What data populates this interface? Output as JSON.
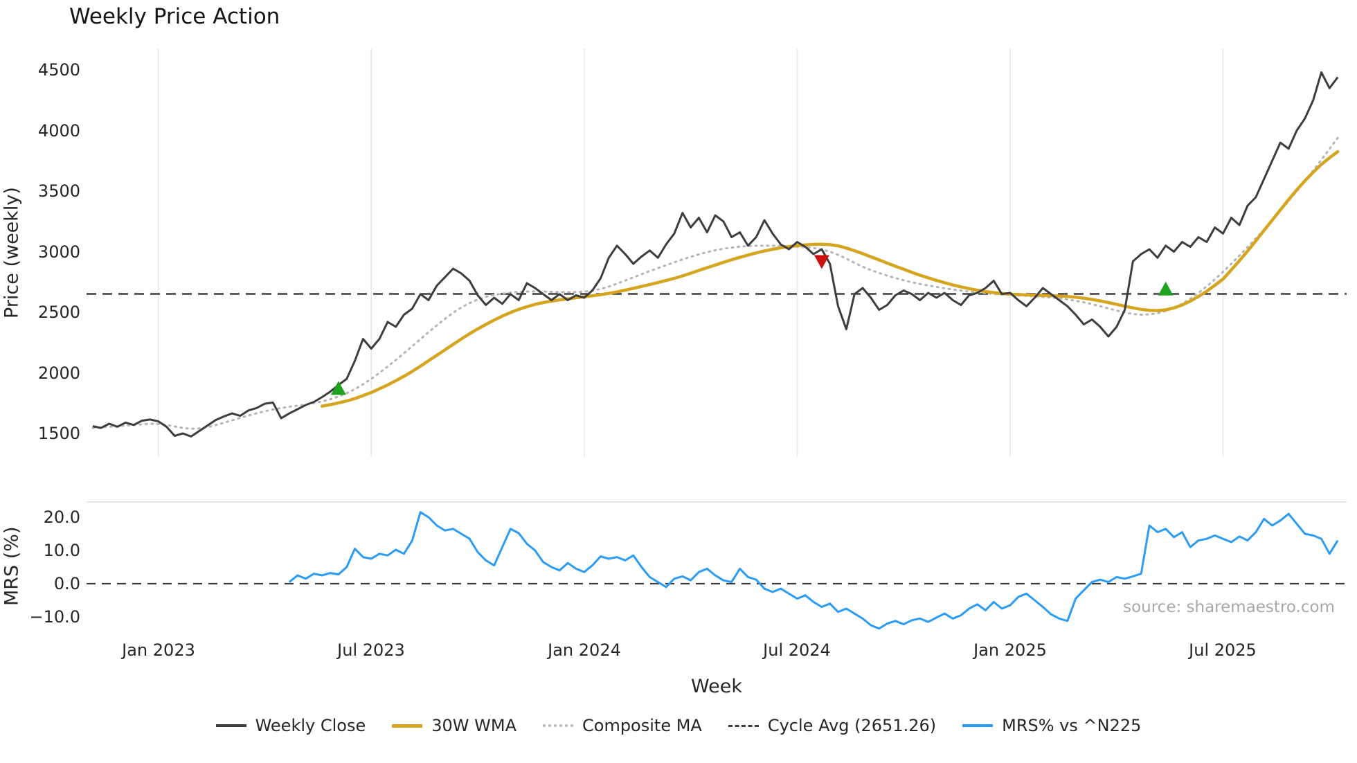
{
  "colors": {
    "weekly_close": "#3d3d3d",
    "wma30": "#d6a520",
    "composite": "#b5b5b5",
    "cycle_avg": "#3d3d3d",
    "mrs": "#2b9bf4",
    "buy_marker": "#1fa31f",
    "sell_marker": "#cc1111",
    "grid": "#e9e9e9",
    "background": "#ffffff"
  },
  "legend": {
    "items": [
      {
        "label": "Weekly Close",
        "color": "#3d3d3d",
        "style": "solid"
      },
      {
        "label": "30W WMA",
        "color": "#d6a520",
        "style": "solid"
      },
      {
        "label": "Composite MA",
        "color": "#b5b5b5",
        "style": "dotted"
      },
      {
        "label": "Cycle Avg (2651.26)",
        "color": "#3d3d3d",
        "style": "dashed"
      },
      {
        "label": "MRS% vs ^N225",
        "color": "#2b9bf4",
        "style": "solid"
      }
    ]
  },
  "chart_data": [
    {
      "type": "line",
      "title": "Weekly Price Action",
      "xlabel": "Week",
      "ylabel": "Price (weekly)",
      "ylim": [
        1300,
        4650
      ],
      "grid": "vertical-only",
      "cycle_avg": 2651.26,
      "ytick_labels": [
        "4500",
        "4000",
        "3500",
        "3000",
        "2500",
        "2000",
        "1500"
      ],
      "ytick_values": [
        4500,
        4000,
        3500,
        3000,
        2500,
        2000,
        1500
      ],
      "xtick_labels": [
        "Jan 2023",
        "Jul 2023",
        "Jan 2024",
        "Jul 2024",
        "Jan 2025",
        "Jul 2025"
      ],
      "xtick_weeks": [
        8,
        34,
        60,
        86,
        112,
        138
      ],
      "x_unit": "week index (week 0 = early Nov 2022, weekly bars through mid Oct 2025)",
      "series": [
        {
          "name": "Weekly Close",
          "start_week": 0,
          "values": [
            1560,
            1545,
            1580,
            1555,
            1590,
            1570,
            1605,
            1615,
            1600,
            1555,
            1480,
            1500,
            1475,
            1520,
            1565,
            1610,
            1640,
            1665,
            1645,
            1690,
            1710,
            1745,
            1755,
            1625,
            1665,
            1700,
            1735,
            1760,
            1800,
            1845,
            1900,
            1950,
            2100,
            2280,
            2200,
            2280,
            2420,
            2380,
            2480,
            2530,
            2650,
            2600,
            2720,
            2790,
            2860,
            2820,
            2760,
            2640,
            2560,
            2620,
            2570,
            2650,
            2600,
            2740,
            2700,
            2650,
            2600,
            2650,
            2600,
            2640,
            2620,
            2680,
            2780,
            2950,
            3050,
            2980,
            2900,
            2960,
            3010,
            2950,
            3060,
            3150,
            3320,
            3200,
            3280,
            3160,
            3300,
            3250,
            3120,
            3160,
            3050,
            3120,
            3260,
            3150,
            3060,
            3020,
            3080,
            3040,
            2980,
            3020,
            2900,
            2550,
            2360,
            2650,
            2700,
            2620,
            2520,
            2560,
            2640,
            2680,
            2650,
            2600,
            2660,
            2620,
            2660,
            2600,
            2560,
            2640,
            2660,
            2700,
            2760,
            2650,
            2660,
            2600,
            2550,
            2620,
            2700,
            2650,
            2600,
            2550,
            2480,
            2400,
            2440,
            2380,
            2300,
            2380,
            2520,
            2920,
            2980,
            3020,
            2950,
            3050,
            3000,
            3080,
            3040,
            3120,
            3080,
            3200,
            3150,
            3280,
            3220,
            3380,
            3450,
            3600,
            3750,
            3900,
            3850,
            4000,
            4100,
            4250,
            4480,
            4350,
            4440
          ]
        },
        {
          "name": "30W WMA",
          "start_week": 28,
          "values": [
            1725,
            1738,
            1752,
            1768,
            1788,
            1812,
            1838,
            1868,
            1900,
            1935,
            1972,
            2012,
            2055,
            2100,
            2145,
            2190,
            2235,
            2280,
            2322,
            2362,
            2400,
            2435,
            2468,
            2498,
            2524,
            2546,
            2565,
            2580,
            2592,
            2602,
            2611,
            2620,
            2628,
            2636,
            2645,
            2656,
            2668,
            2682,
            2697,
            2713,
            2729,
            2745,
            2762,
            2780,
            2800,
            2822,
            2845,
            2868,
            2890,
            2912,
            2933,
            2953,
            2972,
            2990,
            3006,
            3020,
            3032,
            3042,
            3050,
            3056,
            3060,
            3061,
            3058,
            3048,
            3030,
            3008,
            2984,
            2958,
            2932,
            2906,
            2880,
            2855,
            2830,
            2806,
            2784,
            2763,
            2744,
            2726,
            2710,
            2695,
            2682,
            2671,
            2662,
            2655,
            2650,
            2646,
            2643,
            2641,
            2639,
            2637,
            2634,
            2630,
            2624,
            2616,
            2606,
            2594,
            2580,
            2565,
            2550,
            2536,
            2524,
            2516,
            2514,
            2520,
            2536,
            2560,
            2592,
            2630,
            2674,
            2722,
            2774,
            2850,
            2925,
            3005,
            3090,
            3175,
            3260,
            3345,
            3430,
            3510,
            3585,
            3655,
            3720,
            3775,
            3825
          ]
        },
        {
          "name": "Composite MA",
          "start_week": 0,
          "values": [
            1545,
            1550,
            1555,
            1560,
            1565,
            1570,
            1575,
            1580,
            1578,
            1570,
            1558,
            1545,
            1538,
            1542,
            1552,
            1568,
            1588,
            1608,
            1628,
            1648,
            1666,
            1683,
            1698,
            1710,
            1720,
            1729,
            1738,
            1750,
            1764,
            1782,
            1804,
            1832,
            1866,
            1906,
            1950,
            2000,
            2052,
            2106,
            2162,
            2220,
            2278,
            2336,
            2392,
            2446,
            2496,
            2540,
            2576,
            2605,
            2627,
            2643,
            2654,
            2662,
            2668,
            2671,
            2672,
            2671,
            2669,
            2667,
            2666,
            2667,
            2670,
            2678,
            2692,
            2712,
            2736,
            2762,
            2788,
            2814,
            2840,
            2864,
            2888,
            2912,
            2936,
            2958,
            2978,
            2996,
            3012,
            3024,
            3034,
            3041,
            3046,
            3049,
            3050,
            3049,
            3047,
            3044,
            3041,
            3037,
            3030,
            3018,
            3000,
            2974,
            2942,
            2908,
            2876,
            2848,
            2824,
            2802,
            2782,
            2764,
            2748,
            2734,
            2721,
            2709,
            2698,
            2688,
            2679,
            2671,
            2664,
            2658,
            2652,
            2647,
            2643,
            2639,
            2635,
            2631,
            2627,
            2622,
            2615,
            2606,
            2595,
            2582,
            2567,
            2550,
            2532,
            2514,
            2498,
            2486,
            2480,
            2482,
            2492,
            2510,
            2536,
            2570,
            2612,
            2660,
            2714,
            2772,
            2834,
            2900,
            2968,
            3038,
            3110,
            3184,
            3260,
            3338,
            3418,
            3500,
            3584,
            3670,
            3758,
            3848,
            3940
          ]
        }
      ],
      "markers": [
        {
          "type": "buy",
          "week": 30,
          "price": 1870
        },
        {
          "type": "sell",
          "week": 89,
          "price": 2920
        },
        {
          "type": "buy",
          "week": 131,
          "price": 2690
        }
      ]
    },
    {
      "type": "line",
      "xlabel": "Week",
      "ylabel": "MRS (%)",
      "ylim": [
        -15,
        24.5
      ],
      "zero_line": 0,
      "ytick_labels": [
        "20.0",
        "10.0",
        "0.0",
        "−10.0"
      ],
      "ytick_values": [
        20.0,
        10.0,
        0.0,
        -10.0
      ],
      "annotations": [
        "source: sharemaestro.com"
      ],
      "series": [
        {
          "name": "MRS% vs ^N225",
          "start_week": 24,
          "values": [
            0.5,
            2.5,
            1.5,
            3.0,
            2.5,
            3.2,
            2.8,
            5.0,
            10.5,
            8.0,
            7.5,
            9.0,
            8.5,
            10.2,
            9.0,
            13.0,
            21.5,
            20.0,
            17.5,
            16.0,
            16.5,
            15.0,
            13.5,
            9.5,
            7.0,
            5.5,
            11.0,
            16.5,
            15.2,
            12.0,
            10.0,
            6.5,
            5.0,
            4.0,
            6.2,
            4.5,
            3.5,
            5.5,
            8.2,
            7.5,
            8.0,
            7.0,
            8.5,
            5.0,
            2.0,
            0.5,
            -1.0,
            1.5,
            2.2,
            1.0,
            3.5,
            4.5,
            2.5,
            1.0,
            0.5,
            4.5,
            2.0,
            1.2,
            -1.5,
            -2.5,
            -1.5,
            -3.0,
            -4.5,
            -3.5,
            -5.5,
            -7.0,
            -6.0,
            -8.5,
            -7.5,
            -9.0,
            -10.5,
            -12.5,
            -13.5,
            -12.0,
            -11.2,
            -12.2,
            -11.0,
            -10.5,
            -11.5,
            -10.2,
            -9.0,
            -10.5,
            -9.5,
            -7.5,
            -6.2,
            -8.0,
            -5.5,
            -7.5,
            -6.5,
            -4.0,
            -3.0,
            -5.0,
            -7.0,
            -9.2,
            -10.5,
            -11.2,
            -4.5,
            -2.0,
            0.5,
            1.2,
            0.5,
            2.0,
            1.5,
            2.2,
            3.0,
            17.5,
            15.5,
            16.5,
            14.0,
            15.5,
            11.0,
            13.0,
            13.5,
            14.5,
            13.5,
            12.5,
            14.2,
            13.0,
            15.5,
            19.5,
            17.5,
            19.0,
            21.0,
            18.0,
            15.0,
            14.5,
            13.5,
            9.0,
            13.0
          ]
        }
      ]
    }
  ]
}
